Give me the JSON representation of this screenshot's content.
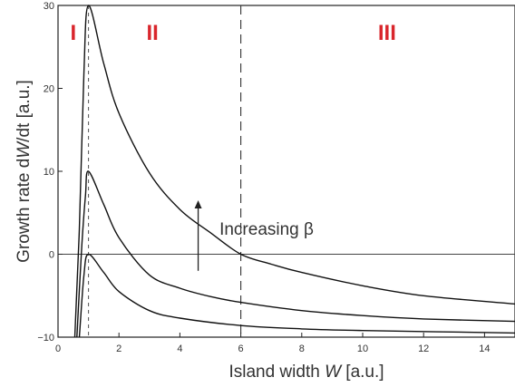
{
  "chart_data": {
    "type": "line",
    "title": "",
    "xlabel_prefix": "Island width ",
    "xlabel_symbol": "W",
    "xlabel_suffix": " [a.u.]",
    "ylabel_prefix": "Growth rate d",
    "ylabel_symbol": "W",
    "ylabel_suffix": "/dt [a.u.]",
    "xlim": [
      0,
      15
    ],
    "ylim": [
      -10,
      30
    ],
    "xticks": [
      0,
      2,
      4,
      6,
      8,
      10,
      12,
      14
    ],
    "yticks": [
      -10,
      0,
      10,
      20,
      30
    ],
    "xtick_labels": [
      "0",
      "2",
      "4",
      "6",
      "8",
      "10",
      "12",
      "14"
    ],
    "ytick_labels": [
      "−10",
      "0",
      "10",
      "20",
      "30"
    ],
    "grid": false,
    "reference_lines": {
      "horizontal_y": 0,
      "vertical_dotted_x": 1.0,
      "vertical_dashed_x": 6.0
    },
    "regions": [
      {
        "label": "I",
        "x": 0.5
      },
      {
        "label": "II",
        "x": 3.1
      },
      {
        "label": "III",
        "x": 10.8
      }
    ],
    "annotation": {
      "text": "Increasing β",
      "x": 5.3,
      "y": 3.0,
      "arrow_from": [
        4.6,
        -2.0
      ],
      "arrow_to": [
        4.6,
        6.5
      ]
    },
    "series": [
      {
        "x": [
          0.55,
          0.7,
          0.85,
          1.0,
          1.5,
          2,
          3,
          4,
          5,
          6,
          7,
          8,
          10,
          12,
          15
        ],
        "y": [
          -10,
          3,
          22,
          30,
          23,
          17,
          9.8,
          5.4,
          2.6,
          0,
          -1.2,
          -2.2,
          -3.8,
          -5,
          -6.0
        ]
      },
      {
        "x": [
          0.62,
          0.78,
          0.9,
          1.0,
          1.5,
          2,
          3,
          4,
          5,
          6,
          8,
          10,
          12,
          15
        ],
        "y": [
          -10,
          1,
          7,
          10,
          6,
          2,
          -2.5,
          -4.1,
          -5.1,
          -5.8,
          -6.8,
          -7.4,
          -7.8,
          -8.1
        ]
      },
      {
        "x": [
          0.7,
          0.85,
          1.0,
          1.5,
          2,
          3,
          4,
          6,
          8,
          10,
          15
        ],
        "y": [
          -10,
          -2.5,
          0,
          -2.2,
          -4.5,
          -6.8,
          -7.7,
          -8.6,
          -9.0,
          -9.2,
          -9.5
        ]
      }
    ]
  }
}
